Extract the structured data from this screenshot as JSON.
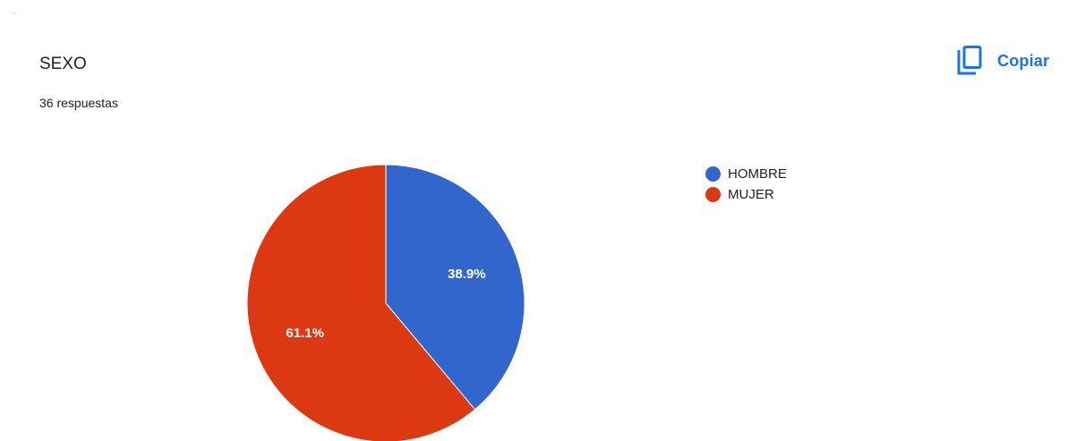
{
  "question": {
    "title": "SEXO",
    "response_count": "36 respuestas"
  },
  "toolbar": {
    "copy_label": "Copiar",
    "copy_icon": "copy-icon",
    "accent_color": "#1a73e8"
  },
  "chart_data": {
    "type": "pie",
    "title": "SEXO",
    "slices": [
      {
        "label": "HOMBRE",
        "value": 38.9,
        "display": "38.9%",
        "color": "#3366cc"
      },
      {
        "label": "MUJER",
        "value": 61.1,
        "display": "61.1%",
        "color": "#dc3912"
      }
    ],
    "legend_position": "right",
    "start_angle_deg": 90,
    "direction": "clockwise"
  }
}
